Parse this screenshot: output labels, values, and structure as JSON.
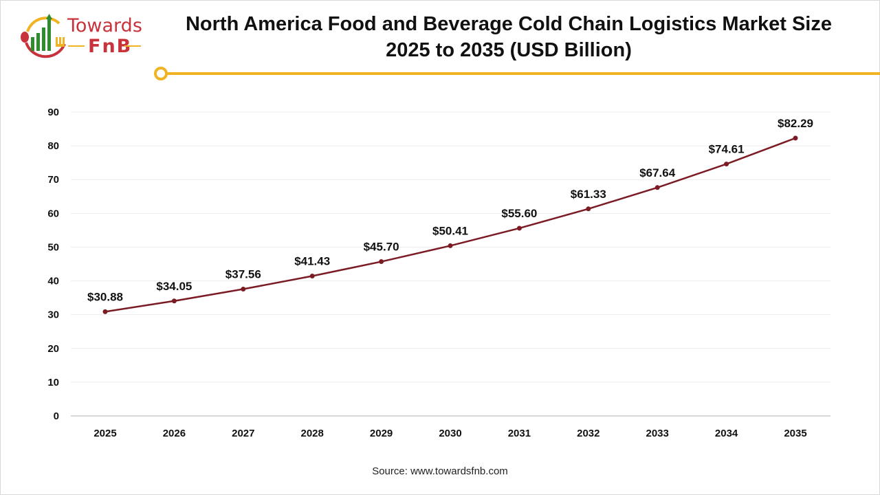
{
  "logo": {
    "line1": "Towards",
    "line2": "FnB"
  },
  "title": "North America Food and Beverage Cold Chain Logistics Market Size 2025 to 2035 (USD Billion)",
  "source": "Source: www.towardsfnb.com",
  "colors": {
    "line": "#7b1c25",
    "accent": "#f0b323",
    "brand_red": "#c8323a",
    "brand_green": "#2e8b2e"
  },
  "chart_data": {
    "type": "line",
    "title": "North America Food and Beverage Cold Chain Logistics Market Size 2025 to 2035 (USD Billion)",
    "xlabel": "",
    "ylabel": "",
    "categories": [
      "2025",
      "2026",
      "2027",
      "2028",
      "2029",
      "2030",
      "2031",
      "2032",
      "2033",
      "2034",
      "2035"
    ],
    "values": [
      30.88,
      34.05,
      37.56,
      41.43,
      45.7,
      50.41,
      55.6,
      61.33,
      67.64,
      74.61,
      82.29
    ],
    "data_labels": [
      "$30.88",
      "$34.05",
      "$37.56",
      "$41.43",
      "$45.70",
      "$50.41",
      "$55.60",
      "$61.33",
      "$67.64",
      "$74.61",
      "$82.29"
    ],
    "ylim": [
      0,
      90
    ],
    "yticks": [
      "0",
      "10",
      "20",
      "30",
      "40",
      "50",
      "60",
      "70",
      "80",
      "90"
    ],
    "grid": true,
    "legend": "none"
  }
}
